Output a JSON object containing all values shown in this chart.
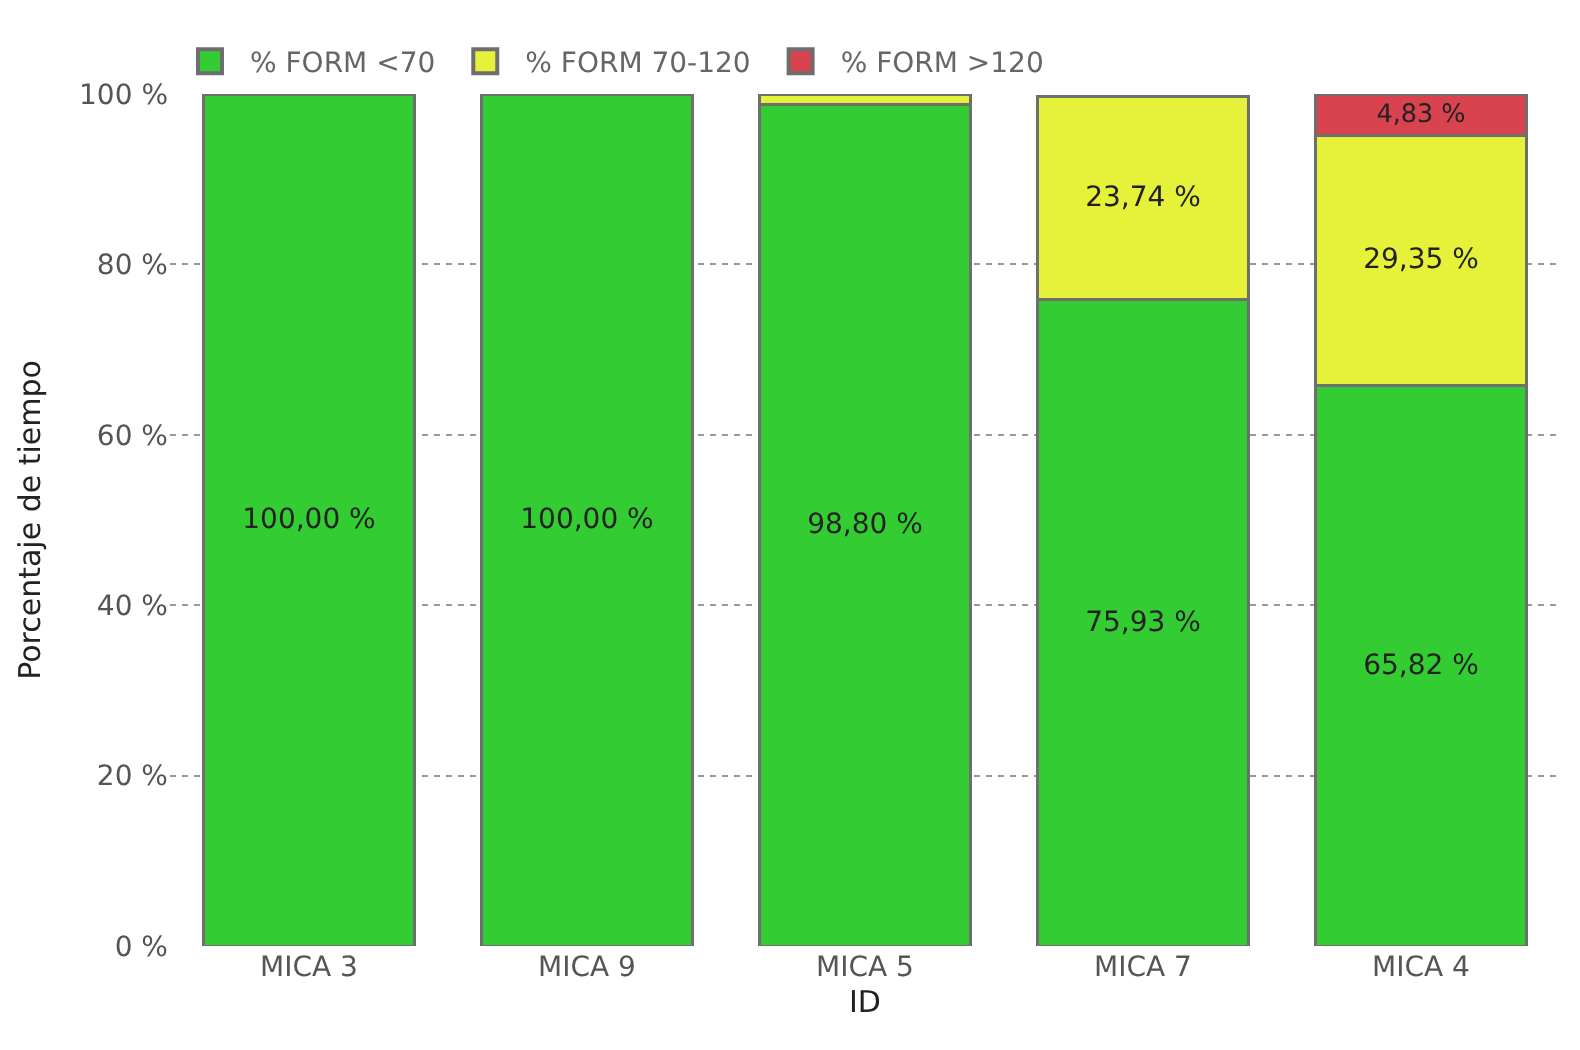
{
  "chart_data": {
    "type": "bar",
    "stacked": true,
    "xlabel": "ID",
    "ylabel": "Porcentaje de tiempo",
    "categories": [
      "MICA 3",
      "MICA 9",
      "MICA 5",
      "MICA 7",
      "MICA 4"
    ],
    "series": [
      {
        "name": "% FORM <70",
        "color": "#33cc33",
        "values": [
          100,
          100,
          98.8,
          75.93,
          65.82
        ],
        "value_labels": [
          "100,00 %",
          "100,00 %",
          "98,80 %",
          "75,93 %",
          "65,82 %"
        ]
      },
      {
        "name": "% FORM 70-120",
        "color": "#e6f23a",
        "values": [
          null,
          null,
          1.2,
          23.74,
          29.35
        ],
        "value_labels": [
          null,
          null,
          null,
          "23,74 %",
          "29,35 %"
        ]
      },
      {
        "name": "% FORM >120",
        "color": "#d9434f",
        "values": [
          null,
          null,
          null,
          null,
          4.83
        ],
        "value_labels": [
          null,
          null,
          null,
          null,
          "4,83 %"
        ]
      }
    ],
    "ylim": [
      0,
      100
    ],
    "yticks": [
      {
        "value": 0,
        "label": "0 %"
      },
      {
        "value": 20,
        "label": "20 %"
      },
      {
        "value": 40,
        "label": "40 %"
      },
      {
        "value": 60,
        "label": "60 %"
      },
      {
        "value": 80,
        "label": "80 %"
      },
      {
        "value": 100,
        "label": "100 %"
      }
    ],
    "grid": "y",
    "legend": "top left"
  }
}
